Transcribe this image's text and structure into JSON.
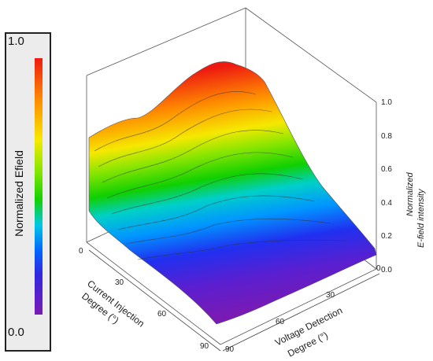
{
  "colorbar": {
    "title": "Normalized Efield",
    "max_label": "1.0",
    "min_label": "0.0"
  },
  "chart_data": {
    "type": "surface",
    "x_axis": {
      "label_line1": "Current Injection",
      "label_line2": "Degree (°)",
      "ticks": [
        "0",
        "30",
        "60",
        "90"
      ],
      "range": [
        0,
        90
      ]
    },
    "y_axis": {
      "label_line1": "Voltage Detection",
      "label_line2": "Degree (°)",
      "ticks": [
        "0",
        "30",
        "60",
        "90"
      ],
      "range": [
        0,
        90
      ]
    },
    "z_axis": {
      "label_line1": "Normalized",
      "label_line2": "E-field intensity",
      "ticks": [
        "0.0",
        "0.2",
        "0.4",
        "0.6",
        "0.8",
        "1.0"
      ],
      "range": [
        0,
        1
      ]
    },
    "colormap": [
      "#7a1ab4",
      "#3028e0",
      "#0066ff",
      "#00c8e6",
      "#12d200",
      "#7ae600",
      "#f6ea00",
      "#ff8a00",
      "#ee1a10"
    ],
    "surface_values": {
      "x": [
        0,
        30,
        60,
        90
      ],
      "y": [
        0,
        30,
        60,
        90
      ],
      "z": [
        [
          0.14,
          0.24,
          0.62,
          0.97
        ],
        [
          0.16,
          0.24,
          0.68,
          0.98
        ],
        [
          0.15,
          0.22,
          0.61,
          1.0
        ],
        [
          0.13,
          0.2,
          0.57,
          0.99
        ]
      ]
    }
  }
}
